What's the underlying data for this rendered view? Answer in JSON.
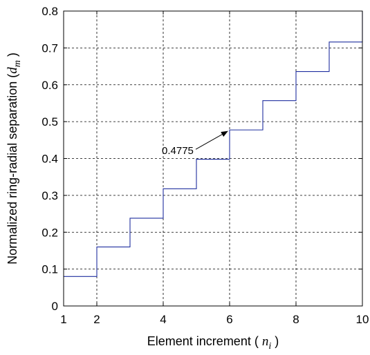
{
  "chart_data": {
    "type": "line",
    "step": "post",
    "xlabel": {
      "text": "Element increment ( ",
      "var": "n",
      "sub": "i",
      "close": " )"
    },
    "ylabel": {
      "text": "Normalized ring-radial separation (",
      "var": "d",
      "sub": "m",
      "close": " )"
    },
    "xlim": [
      1,
      10
    ],
    "ylim": [
      0,
      0.8
    ],
    "xticks": [
      1,
      2,
      4,
      6,
      8,
      10
    ],
    "yticks": [
      0,
      0.1,
      0.2,
      0.3,
      0.4,
      0.5,
      0.6,
      0.7,
      0.8
    ],
    "grid": true,
    "series": [
      {
        "color": "#1f2f9f",
        "x": [
          1,
          2,
          3,
          4,
          5,
          6,
          7,
          8,
          9,
          10
        ],
        "y": [
          0.08,
          0.16,
          0.238,
          0.318,
          0.398,
          0.4775,
          0.557,
          0.636,
          0.716,
          0.8
        ]
      }
    ],
    "annotations": [
      {
        "text": "0.4775",
        "x": 6,
        "y": 0.4775
      }
    ]
  }
}
